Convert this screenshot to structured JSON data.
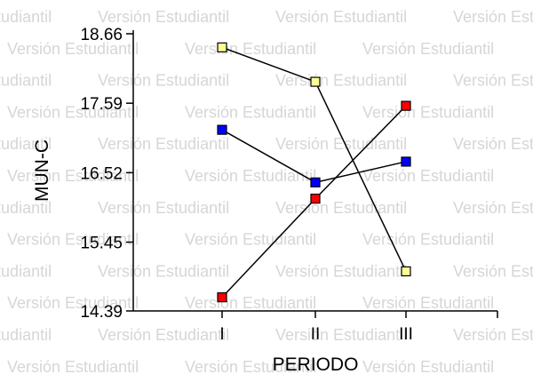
{
  "watermark": "Versión Estudiantil",
  "chart_data": {
    "type": "line",
    "xlabel": "PERIODO",
    "ylabel": "MUN-C",
    "categories": [
      "I",
      "II",
      "III"
    ],
    "yticks": [
      "18.66",
      "17.59",
      "16.52",
      "15.45",
      "14.39"
    ],
    "ylim": [
      14.39,
      18.66
    ],
    "grid": false,
    "legend": "none",
    "series": [
      {
        "color": "#ffff99",
        "values": [
          18.45,
          17.92,
          15.0
        ]
      },
      {
        "color": "#0000ff",
        "values": [
          17.18,
          16.37,
          16.69
        ]
      },
      {
        "color": "#ff0000",
        "values": [
          14.6,
          16.12,
          17.55
        ]
      }
    ]
  }
}
